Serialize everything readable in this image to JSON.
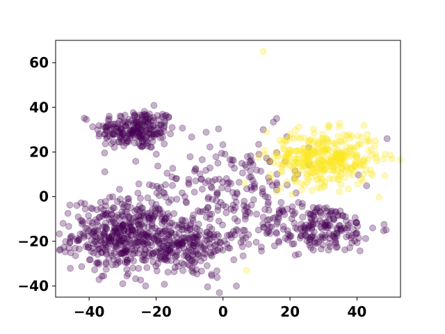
{
  "chart_data": {
    "type": "scatter",
    "title": "",
    "xlabel": "",
    "ylabel": "",
    "xlim": [
      -50,
      53
    ],
    "ylim": [
      -45,
      70
    ],
    "xticks": [
      -40,
      -20,
      0,
      20,
      40
    ],
    "yticks": [
      -40,
      -20,
      0,
      20,
      40,
      60
    ],
    "xtick_labels": [
      "−40",
      "−20",
      "0",
      "20",
      "40"
    ],
    "ytick_labels": [
      "−40",
      "−20",
      "0",
      "20",
      "40",
      "60"
    ],
    "grid": false,
    "legend": "none",
    "marker_alpha": 0.3,
    "colors": {
      "class_0": "#440154",
      "class_1": "#fde725"
    },
    "series": [
      {
        "class": 0,
        "color": "#440154",
        "clusters": [
          {
            "center": [
              -26,
              30
            ],
            "spread": [
              6,
              4.5
            ],
            "count": 230
          },
          {
            "center": [
              -30,
              -17
            ],
            "spread": [
              7.5,
              8
            ],
            "count": 420
          },
          {
            "center": [
              -12,
              -22
            ],
            "spread": [
              8,
              7
            ],
            "count": 240
          },
          {
            "center": [
              28,
              -14
            ],
            "spread": [
              9,
              5.5
            ],
            "count": 220
          },
          {
            "center": [
              2,
              5
            ],
            "spread": [
              12,
              11
            ],
            "count": 190
          }
        ],
        "outliers": [
          [
            -46,
            -23
          ],
          [
            49,
            26
          ],
          [
            4,
            -40
          ],
          [
            16,
            35
          ],
          [
            12,
            30
          ]
        ]
      },
      {
        "class": 1,
        "color": "#fde725",
        "clusters": [
          {
            "center": [
              30,
              17
            ],
            "spread": [
              8,
              6
            ],
            "count": 380
          }
        ],
        "outliers": [
          [
            12,
            65
          ],
          [
            7,
            -33
          ],
          [
            13,
            29
          ],
          [
            44,
            12
          ]
        ]
      }
    ]
  }
}
